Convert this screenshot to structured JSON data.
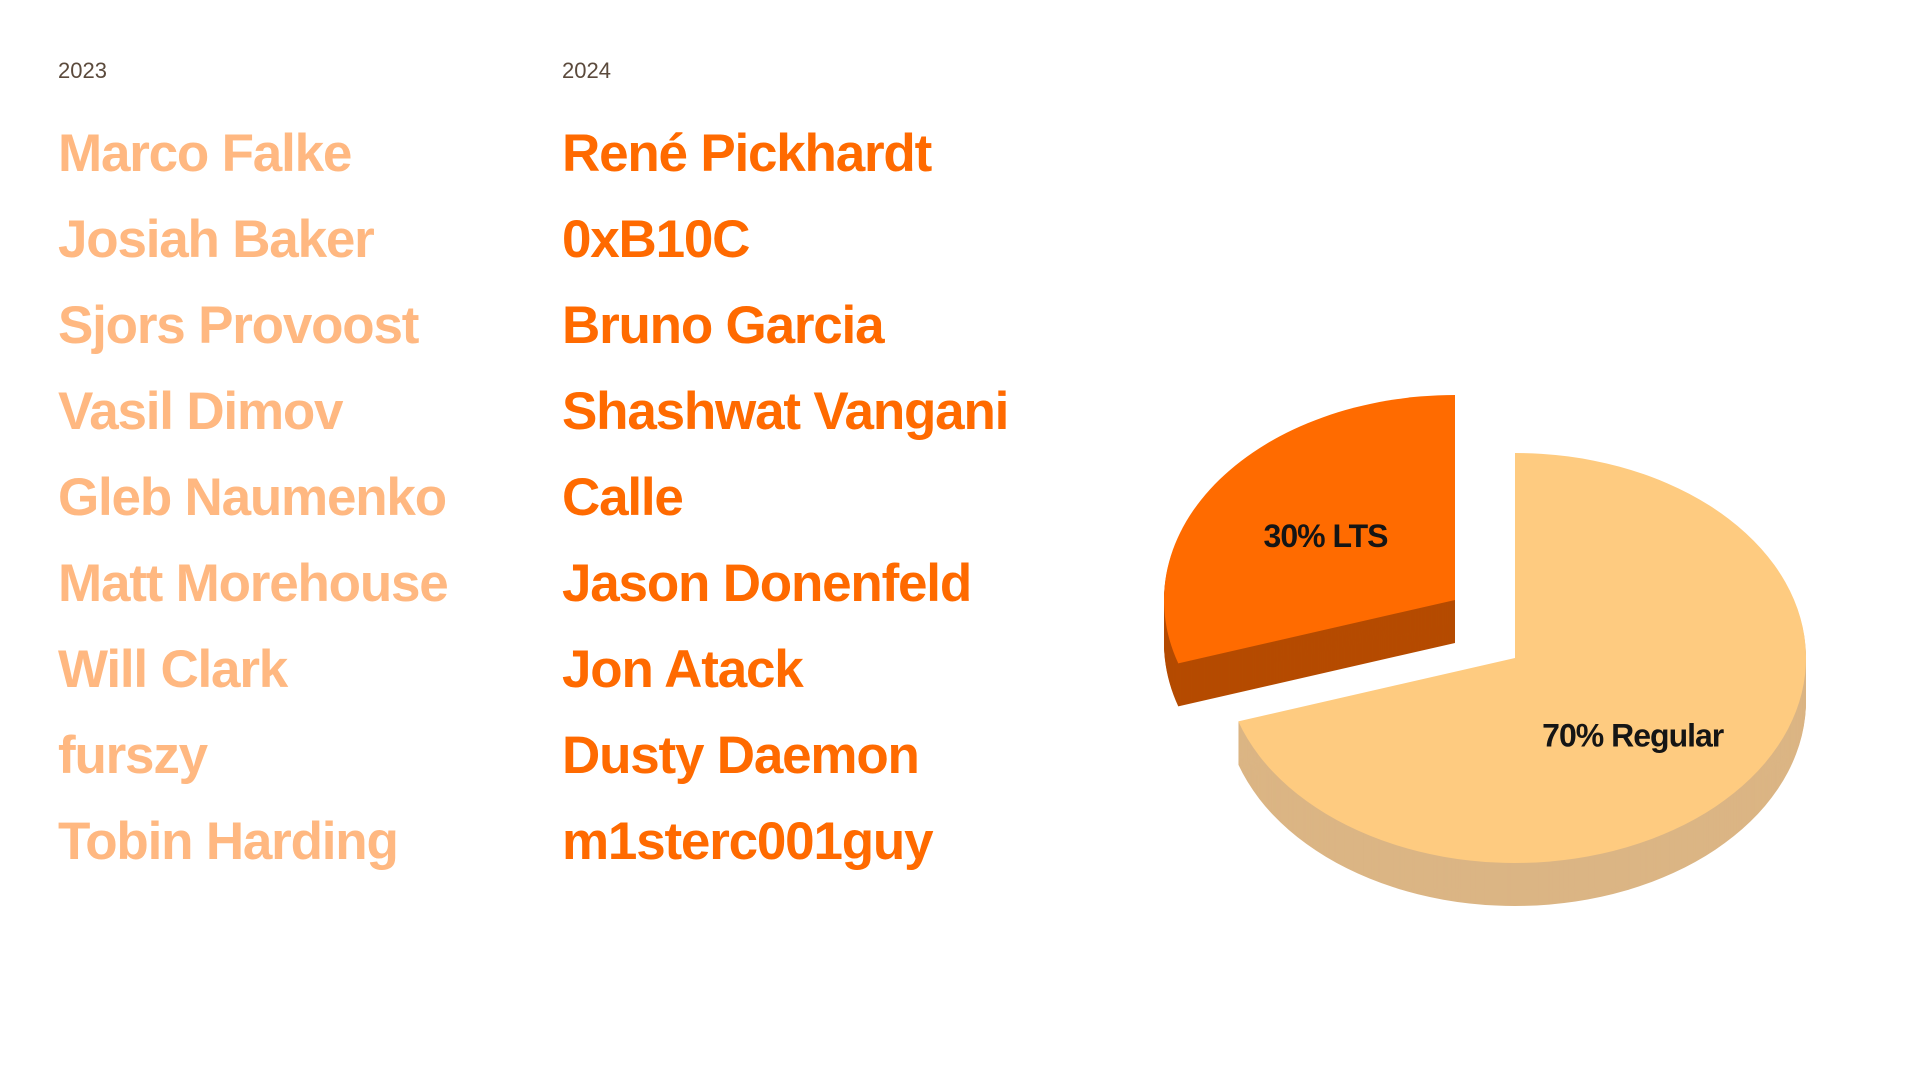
{
  "columns": [
    {
      "year": "2023",
      "color": "#FFB881",
      "names": [
        "Marco Falke",
        "Josiah Baker",
        "Sjors Provoost",
        "Vasil Dimov",
        "Gleb Naumenko",
        "Matt Morehouse",
        "Will Clark",
        "furszy",
        "Tobin Harding"
      ]
    },
    {
      "year": "2024",
      "color": "#FF6A00",
      "names": [
        "René Pickhardt",
        "0xB10C",
        "Bruno Garcia",
        "Shashwat Vangani",
        "Calle",
        "Jason Donenfeld",
        "Jon Atack",
        "Dusty Daemon",
        "m1sterc001guy"
      ]
    }
  ],
  "chart_data": {
    "type": "pie",
    "style": "3d-exploded",
    "slices": [
      {
        "label": "70% Regular",
        "value": 70,
        "color": "#FECB80",
        "side_color": "#DBB584",
        "exploded": false
      },
      {
        "label": "30% LTS",
        "value": 30,
        "color": "#FF6B00",
        "side_color": "#B54B00",
        "exploded": true
      }
    ],
    "start": "12 o'clock",
    "direction": "clockwise"
  }
}
